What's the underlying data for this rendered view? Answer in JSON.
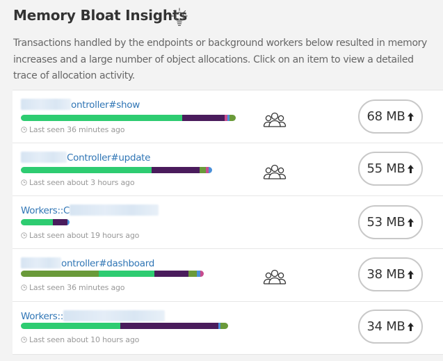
{
  "page": {
    "title": "Memory Bloat Insights",
    "description": "Transactions handled by the endpoints or background workers below resulted in memory increases and a large number of object allocations. Click on an item to view a detailed trace of allocation activity."
  },
  "colors": {
    "green": "#2ecc71",
    "purple": "#4a1c5c",
    "olive": "#6a9a3a",
    "pink": "#c74b8e",
    "blue": "#4a90d9",
    "link": "#2f75b5"
  },
  "rows": [
    {
      "name": "ontroller#show",
      "last_seen": "Last seen 36 minutes ago",
      "memory": "68 MB",
      "has_users": true
    },
    {
      "name": "Controller#update",
      "last_seen": "Last seen about 3 hours ago",
      "memory": "55 MB",
      "has_users": true
    },
    {
      "name": "Workers::C",
      "last_seen": "Last seen about 19 hours ago",
      "memory": "53 MB",
      "has_users": false
    },
    {
      "name": "ontroller#dashboard",
      "last_seen": "Last seen 36 minutes ago",
      "memory": "38 MB",
      "has_users": true
    },
    {
      "name": "Workers::",
      "last_seen": "Last seen about 10 hours ago",
      "memory": "34 MB",
      "has_users": false
    }
  ]
}
